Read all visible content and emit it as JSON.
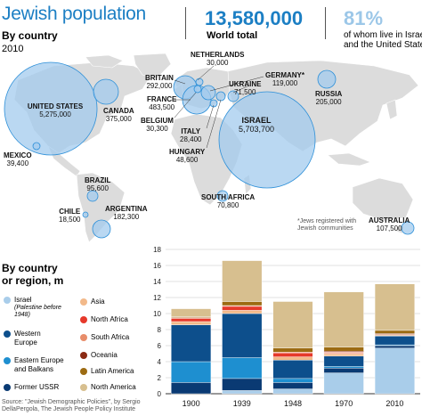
{
  "header": {
    "title": "Jewish population",
    "subtitle": "By country",
    "year": "2010",
    "world_total_value": "13,580,000",
    "world_total_label": "World total",
    "share_value": "81%",
    "share_label_1": "of whom live in Israel",
    "share_label_2": "and the United States"
  },
  "map": {
    "countries": [
      {
        "name": "UNITED STATES",
        "value": "5,275,000"
      },
      {
        "name": "CANADA",
        "value": "375,000"
      },
      {
        "name": "MEXICO",
        "value": "39,400"
      },
      {
        "name": "BRAZIL",
        "value": "95,600"
      },
      {
        "name": "CHILE",
        "value": "18,500"
      },
      {
        "name": "ARGENTINA",
        "value": "182,300"
      },
      {
        "name": "BRITAIN",
        "value": "292,000"
      },
      {
        "name": "NETHERLANDS",
        "value": "30,000"
      },
      {
        "name": "FRANCE",
        "value": "483,500"
      },
      {
        "name": "BELGIUM",
        "value": "30,300"
      },
      {
        "name": "GERMANY*",
        "value": "119,000"
      },
      {
        "name": "UKRAINE",
        "value": "71,500"
      },
      {
        "name": "ITALY",
        "value": "28,400"
      },
      {
        "name": "HUNGARY",
        "value": "48,600"
      },
      {
        "name": "ISRAEL",
        "value": "5,703,700"
      },
      {
        "name": "RUSSIA",
        "value": "205,000"
      },
      {
        "name": "SOUTH AFRICA",
        "value": "70,800"
      },
      {
        "name": "AUSTRALIA",
        "value": "107,500"
      }
    ],
    "footnote_1": "*Jews registered with",
    "footnote_2": "Jewish communities"
  },
  "legend": {
    "title_1": "By country",
    "title_2": "or region, m",
    "items": [
      {
        "label": "Israel",
        "sub": "(Palestine before 1948)",
        "color": "#a9cdea"
      },
      {
        "label": "Western Europe",
        "color": "#0d4f8c"
      },
      {
        "label": "Eastern Europe and Balkans",
        "color": "#1e8fd0"
      },
      {
        "label": "Former USSR",
        "color": "#0a3a73"
      },
      {
        "label": "Asia",
        "color": "#f2b98a"
      },
      {
        "label": "North Africa",
        "color": "#e6392b"
      },
      {
        "label": "South Africa",
        "color": "#e88d6a"
      },
      {
        "label": "Oceania",
        "color": "#8b2a14"
      },
      {
        "label": "Latin America",
        "color": "#9c6b12"
      },
      {
        "label": "North America",
        "color": "#d7bf8f"
      }
    ]
  },
  "source": {
    "line1": "Source: \"Jewish Demographic Policies\", by Sergio",
    "line2": "DellaPergola, The Jewish People Policy Institute"
  },
  "chart_data": {
    "type": "bar",
    "stacked": true,
    "categories": [
      "1900",
      "1939",
      "1948",
      "1970",
      "2010"
    ],
    "ylim": [
      0,
      18
    ],
    "yticks": [
      "0",
      "2",
      "4",
      "6",
      "8",
      "10",
      "12",
      "14",
      "16",
      "18"
    ],
    "grid": true,
    "series": [
      {
        "name": "Israel",
        "color": "#a9cdea",
        "values": [
          0.0,
          0.4,
          0.6,
          2.6,
          5.7
        ]
      },
      {
        "name": "Former USSR",
        "color": "#0a3a73",
        "values": [
          1.4,
          1.5,
          0.8,
          0.6,
          0.3
        ]
      },
      {
        "name": "Eastern Europe and Balkans",
        "color": "#1e8fd0",
        "values": [
          2.6,
          2.6,
          0.5,
          0.2,
          0.1
        ]
      },
      {
        "name": "Western Europe",
        "color": "#0d4f8c",
        "values": [
          4.6,
          5.5,
          2.3,
          1.3,
          1.1
        ]
      },
      {
        "name": "Asia",
        "color": "#f2b98a",
        "values": [
          0.4,
          0.4,
          0.4,
          0.3,
          0.1
        ]
      },
      {
        "name": "North Africa",
        "color": "#e6392b",
        "values": [
          0.4,
          0.5,
          0.5,
          0.1,
          0.0
        ]
      },
      {
        "name": "South Africa",
        "color": "#e88d6a",
        "values": [
          0.1,
          0.1,
          0.1,
          0.1,
          0.1
        ]
      },
      {
        "name": "Oceania",
        "color": "#8b2a14",
        "values": [
          0.0,
          0.0,
          0.0,
          0.1,
          0.1
        ]
      },
      {
        "name": "Latin America",
        "color": "#9c6b12",
        "values": [
          0.1,
          0.5,
          0.5,
          0.5,
          0.4
        ]
      },
      {
        "name": "North America",
        "color": "#d7bf8f",
        "values": [
          1.0,
          5.1,
          5.8,
          6.9,
          5.8
        ]
      }
    ]
  }
}
